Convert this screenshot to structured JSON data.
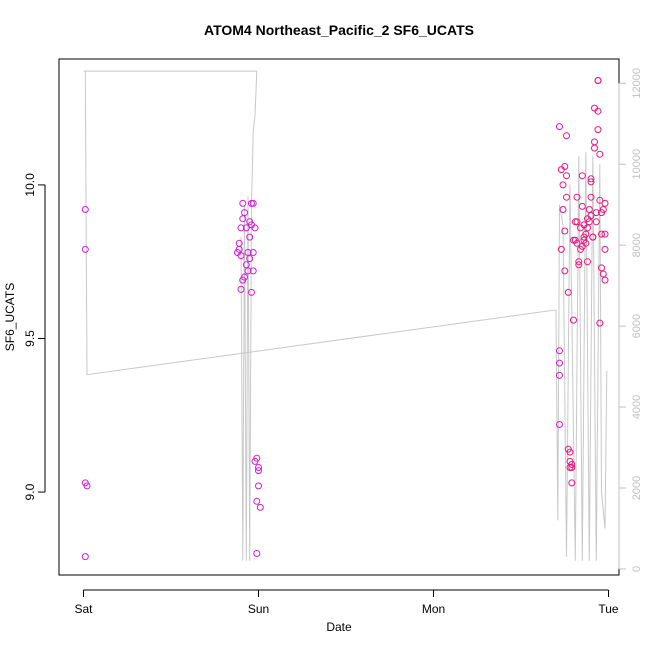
{
  "chart_data": {
    "type": "scatter",
    "title": "ATOM4 Northeast_Pacific_2 SF6_UCATS",
    "xlabel": "Date",
    "ylabel": "SF6_UCATS",
    "x_ticks": [
      {
        "day": 0,
        "label": "Sat"
      },
      {
        "day": 1,
        "label": "Sun"
      },
      {
        "day": 2,
        "label": "Mon"
      },
      {
        "day": 3,
        "label": "Tue"
      }
    ],
    "xlim": [
      -0.14,
      3.06
    ],
    "ylim": [
      8.73,
      10.41
    ],
    "y_ticks": [
      {
        "value": 9.0,
        "label": "9.0"
      },
      {
        "value": 9.5,
        "label": "9.5"
      },
      {
        "value": 10.0,
        "label": "10.0"
      }
    ],
    "y2lim": [
      -150,
      12600
    ],
    "y2_ticks": [
      {
        "value": 0,
        "label": "0"
      },
      {
        "value": 2000,
        "label": "2000"
      },
      {
        "value": 4000,
        "label": "4000"
      },
      {
        "value": 6000,
        "label": "6000"
      },
      {
        "value": 8000,
        "label": "8000"
      },
      {
        "value": 10000,
        "label": "10000"
      },
      {
        "value": 12000,
        "label": "12000"
      }
    ],
    "series": [
      {
        "type": "scatter",
        "points": [
          [
            0.01,
            9.92
          ],
          [
            0.01,
            9.79
          ],
          [
            0.01,
            9.03
          ],
          [
            0.02,
            9.02
          ],
          [
            0.01,
            8.79
          ],
          [
            0.88,
            9.78
          ],
          [
            0.89,
            9.79
          ],
          [
            0.89,
            9.81
          ],
          [
            0.9,
            9.77
          ],
          [
            0.9,
            9.86
          ],
          [
            0.91,
            9.89
          ],
          [
            0.91,
            9.94
          ],
          [
            0.92,
            9.91
          ],
          [
            0.92,
            9.7
          ],
          [
            0.91,
            9.69
          ],
          [
            0.9,
            9.66
          ],
          [
            0.93,
            9.86
          ],
          [
            0.93,
            9.74
          ],
          [
            0.94,
            9.72
          ],
          [
            0.94,
            9.78
          ],
          [
            0.95,
            9.76
          ],
          [
            0.95,
            9.83
          ],
          [
            0.95,
            9.88
          ],
          [
            0.96,
            9.87
          ],
          [
            0.96,
            9.94
          ],
          [
            0.97,
            9.94
          ],
          [
            0.96,
            9.65
          ],
          [
            0.97,
            9.78
          ],
          [
            0.97,
            9.72
          ],
          [
            0.98,
            9.86
          ],
          [
            0.98,
            9.1
          ],
          [
            0.99,
            9.11
          ],
          [
            0.99,
            8.97
          ],
          [
            1.0,
            9.02
          ],
          [
            1.0,
            9.07
          ],
          [
            1.0,
            9.08
          ],
          [
            1.01,
            8.95
          ],
          [
            0.99,
            8.8
          ],
          [
            2.72,
            10.19
          ],
          [
            2.72,
            9.46
          ],
          [
            2.72,
            9.42
          ],
          [
            2.72,
            9.38
          ],
          [
            2.72,
            9.22
          ]
        ]
      },
      {
        "type": "scatter",
        "points": [
          [
            2.73,
            10.05
          ],
          [
            2.73,
            9.79
          ],
          [
            2.74,
            10.0
          ],
          [
            2.74,
            9.92
          ],
          [
            2.75,
            10.06
          ],
          [
            2.75,
            9.85
          ],
          [
            2.75,
            9.72
          ],
          [
            2.76,
            10.03
          ],
          [
            2.76,
            10.16
          ],
          [
            2.76,
            9.96
          ],
          [
            2.77,
            9.65
          ],
          [
            2.77,
            9.14
          ],
          [
            2.78,
            9.1
          ],
          [
            2.78,
            9.08
          ],
          [
            2.78,
            9.13
          ],
          [
            2.79,
            9.03
          ],
          [
            2.79,
            9.09
          ],
          [
            2.79,
            9.08
          ],
          [
            2.8,
            9.56
          ],
          [
            2.8,
            9.82
          ],
          [
            2.81,
            9.88
          ],
          [
            2.81,
            9.82
          ],
          [
            2.82,
            9.88
          ],
          [
            2.82,
            9.96
          ],
          [
            2.82,
            9.81
          ],
          [
            2.83,
            9.75
          ],
          [
            2.83,
            9.74
          ],
          [
            2.84,
            9.79
          ],
          [
            2.84,
            9.86
          ],
          [
            2.85,
            9.8
          ],
          [
            2.85,
            9.93
          ],
          [
            2.85,
            10.03
          ],
          [
            2.86,
            9.87
          ],
          [
            2.86,
            9.83
          ],
          [
            2.86,
            9.82
          ],
          [
            2.87,
            9.81
          ],
          [
            2.87,
            9.84
          ],
          [
            2.88,
            9.75
          ],
          [
            2.88,
            9.86
          ],
          [
            2.88,
            9.89
          ],
          [
            2.89,
            9.92
          ],
          [
            2.89,
            9.88
          ],
          [
            2.9,
            10.02
          ],
          [
            2.9,
            10.01
          ],
          [
            2.9,
            9.96
          ],
          [
            2.9,
            9.9
          ],
          [
            2.91,
            9.83
          ],
          [
            2.91,
            9.83
          ],
          [
            2.92,
            10.12
          ],
          [
            2.92,
            10.14
          ],
          [
            2.92,
            10.25
          ],
          [
            2.93,
            9.88
          ],
          [
            2.93,
            9.91
          ],
          [
            2.94,
            10.18
          ],
          [
            2.94,
            10.24
          ],
          [
            2.94,
            10.34
          ],
          [
            2.94,
            10.34
          ],
          [
            2.95,
            10.1
          ],
          [
            2.95,
            9.95
          ],
          [
            2.95,
            9.55
          ],
          [
            2.96,
            9.73
          ],
          [
            2.96,
            9.91
          ],
          [
            2.96,
            9.84
          ],
          [
            2.97,
            9.92
          ],
          [
            2.97,
            9.71
          ],
          [
            2.98,
            9.69
          ],
          [
            2.98,
            9.79
          ],
          [
            2.98,
            9.84
          ],
          [
            2.98,
            9.94
          ]
        ]
      },
      {
        "type": "line",
        "axis": "right",
        "points": [
          [
            0.0,
            12300
          ],
          [
            0.01,
            12300
          ],
          [
            0.02,
            4800
          ],
          [
            2.7,
            6400
          ],
          [
            2.71,
            1200
          ],
          [
            2.72,
            9000
          ],
          [
            2.74,
            8500
          ],
          [
            2.76,
            300
          ],
          [
            2.78,
            9500
          ],
          [
            2.81,
            200
          ],
          [
            2.83,
            10200
          ],
          [
            2.85,
            200
          ],
          [
            2.87,
            10300
          ],
          [
            2.89,
            200
          ],
          [
            2.91,
            10200
          ],
          [
            2.93,
            200
          ],
          [
            2.95,
            10000
          ],
          [
            2.96,
            1900
          ],
          [
            2.98,
            1000
          ],
          [
            2.99,
            4900
          ]
        ]
      },
      {
        "type": "line",
        "axis": "right",
        "points": [
          [
            0.0,
            12300
          ],
          [
            0.99,
            12300
          ],
          [
            0.98,
            11200
          ],
          [
            0.97,
            10800
          ],
          [
            0.96,
            9000
          ],
          [
            0.95,
            200
          ],
          [
            0.94,
            9200
          ],
          [
            0.93,
            200
          ],
          [
            0.92,
            9000
          ],
          [
            0.91,
            200
          ],
          [
            0.9,
            8200
          ]
        ]
      }
    ],
    "colors": {
      "series_1": "#d020d0",
      "series_2": "#e8187f",
      "line": "#c8c8c8",
      "right_axis": "#c0c0c0"
    },
    "grid": false,
    "legend": "none"
  }
}
